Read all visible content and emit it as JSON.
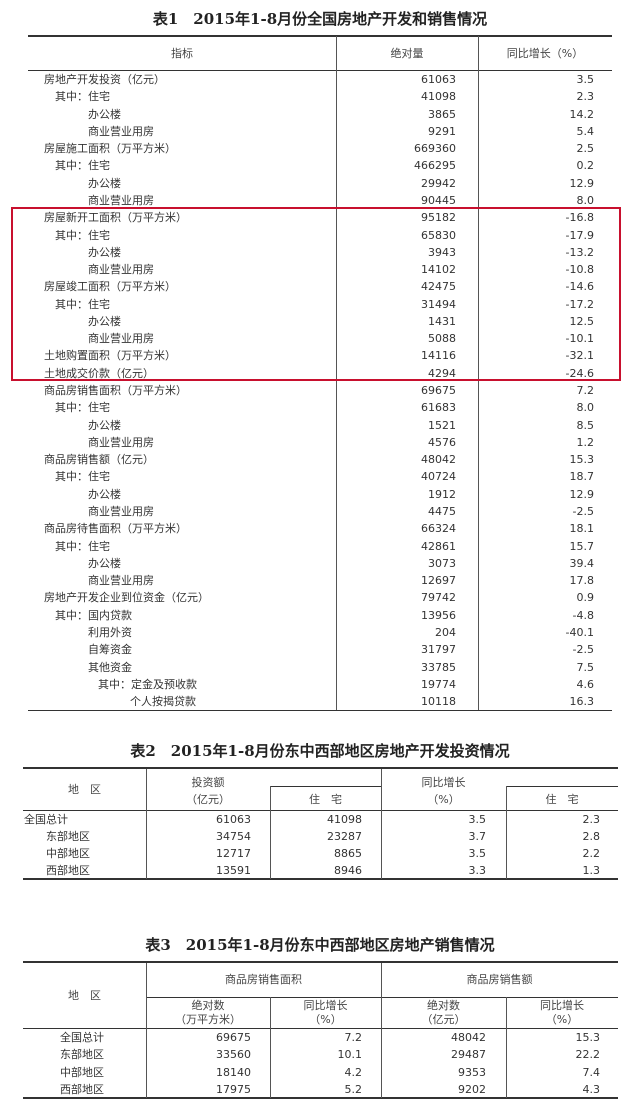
{
  "table1": {
    "title": "表1　2015年1-8月份全国房地产开发和销售情况",
    "headers": [
      "指标",
      "绝对量",
      "同比增长（%）"
    ],
    "highlight_color": "#c8102e",
    "rows": [
      {
        "label": "房地产开发投资（亿元）",
        "indent": 0,
        "value": "61063",
        "growth": "3.5"
      },
      {
        "label": "其中：住宅",
        "indent": 1,
        "value": "41098",
        "growth": "2.3"
      },
      {
        "label": "办公楼",
        "indent": 2,
        "value": "3865",
        "growth": "14.2"
      },
      {
        "label": "商业营业用房",
        "indent": 2,
        "value": "9291",
        "growth": "5.4"
      },
      {
        "label": "房屋施工面积（万平方米）",
        "indent": 0,
        "value": "669360",
        "growth": "2.5"
      },
      {
        "label": "其中：住宅",
        "indent": 1,
        "value": "466295",
        "growth": "0.2"
      },
      {
        "label": "办公楼",
        "indent": 2,
        "value": "29942",
        "growth": "12.9"
      },
      {
        "label": "商业营业用房",
        "indent": 2,
        "value": "90445",
        "growth": "8.0"
      },
      {
        "label": "房屋新开工面积（万平方米）",
        "indent": 0,
        "value": "95182",
        "growth": "-16.8"
      },
      {
        "label": "其中：住宅",
        "indent": 1,
        "value": "65830",
        "growth": "-17.9"
      },
      {
        "label": "办公楼",
        "indent": 2,
        "value": "3943",
        "growth": "-13.2"
      },
      {
        "label": "商业营业用房",
        "indent": 2,
        "value": "14102",
        "growth": "-10.8"
      },
      {
        "label": "房屋竣工面积（万平方米）",
        "indent": 0,
        "value": "42475",
        "growth": "-14.6"
      },
      {
        "label": "其中：住宅",
        "indent": 1,
        "value": "31494",
        "growth": "-17.2"
      },
      {
        "label": "办公楼",
        "indent": 2,
        "value": "1431",
        "growth": "12.5"
      },
      {
        "label": "商业营业用房",
        "indent": 2,
        "value": "5088",
        "growth": "-10.1"
      },
      {
        "label": "土地购置面积（万平方米）",
        "indent": 0,
        "value": "14116",
        "growth": "-32.1"
      },
      {
        "label": "土地成交价款（亿元）",
        "indent": 0,
        "value": "4294",
        "growth": "-24.6"
      },
      {
        "label": "商品房销售面积（万平方米）",
        "indent": 0,
        "value": "69675",
        "growth": "7.2"
      },
      {
        "label": "其中：住宅",
        "indent": 1,
        "value": "61683",
        "growth": "8.0"
      },
      {
        "label": "办公楼",
        "indent": 2,
        "value": "1521",
        "growth": "8.5"
      },
      {
        "label": "商业营业用房",
        "indent": 2,
        "value": "4576",
        "growth": "1.2"
      },
      {
        "label": "商品房销售额（亿元）",
        "indent": 0,
        "value": "48042",
        "growth": "15.3"
      },
      {
        "label": "其中：住宅",
        "indent": 1,
        "value": "40724",
        "growth": "18.7"
      },
      {
        "label": "办公楼",
        "indent": 2,
        "value": "1912",
        "growth": "12.9"
      },
      {
        "label": "商业营业用房",
        "indent": 2,
        "value": "4475",
        "growth": "-2.5"
      },
      {
        "label": "商品房待售面积（万平方米）",
        "indent": 0,
        "value": "66324",
        "growth": "18.1"
      },
      {
        "label": "其中：住宅",
        "indent": 1,
        "value": "42861",
        "growth": "15.7"
      },
      {
        "label": "办公楼",
        "indent": 2,
        "value": "3073",
        "growth": "39.4"
      },
      {
        "label": "商业营业用房",
        "indent": 2,
        "value": "12697",
        "growth": "17.8"
      },
      {
        "label": "房地产开发企业到位资金（亿元）",
        "indent": 0,
        "value": "79742",
        "growth": "0.9"
      },
      {
        "label": "其中：国内贷款",
        "indent": 1,
        "value": "13956",
        "growth": "-4.8"
      },
      {
        "label": "利用外资",
        "indent": 2,
        "value": "204",
        "growth": "-40.1"
      },
      {
        "label": "自筹资金",
        "indent": 2,
        "value": "31797",
        "growth": "-2.5"
      },
      {
        "label": "其他资金",
        "indent": 2,
        "value": "33785",
        "growth": "7.5"
      },
      {
        "label": "其中：定金及预收款",
        "indent": 3,
        "value": "19774",
        "growth": "4.6"
      },
      {
        "label": "个人按揭贷款",
        "indent": 4,
        "value": "10118",
        "growth": "16.3"
      }
    ]
  },
  "table2": {
    "title": "表2　2015年1-8月份东中西部地区房地产开发投资情况",
    "headers": {
      "region": "地　区",
      "invest": "投资额",
      "invest_unit": "（亿元）",
      "residential": "住　宅",
      "growth": "同比增长",
      "growth_unit": "（%）",
      "growth_residential": "住　宅"
    },
    "rows": [
      {
        "region": "全国总计",
        "indent": 0,
        "invest": "61063",
        "residential": "41098",
        "growth": "3.5",
        "growth_residential": "2.3"
      },
      {
        "region": "东部地区",
        "indent": 1,
        "invest": "34754",
        "residential": "23287",
        "growth": "3.7",
        "growth_residential": "2.8"
      },
      {
        "region": "中部地区",
        "indent": 1,
        "invest": "12717",
        "residential": "8865",
        "growth": "3.5",
        "growth_residential": "2.2"
      },
      {
        "region": "西部地区",
        "indent": 1,
        "invest": "13591",
        "residential": "8946",
        "growth": "3.3",
        "growth_residential": "1.3"
      }
    ]
  },
  "table3": {
    "title": "表3　2015年1-8月份东中西部地区房地产销售情况",
    "headers": {
      "region": "地　区",
      "area_group": "商品房销售面积",
      "amount_group": "商品房销售额",
      "area_abs": "绝对数",
      "area_unit": "（万平方米）",
      "area_growth": "同比增长",
      "area_growth_unit": "（%）",
      "amount_abs": "绝对数",
      "amount_unit": "（亿元）",
      "amount_growth": "同比增长",
      "amount_growth_unit": "（%）"
    },
    "rows": [
      {
        "region": "全国总计",
        "area": "69675",
        "area_growth": "7.2",
        "amount": "48042",
        "amount_growth": "15.3"
      },
      {
        "region": "东部地区",
        "area": "33560",
        "area_growth": "10.1",
        "amount": "29487",
        "amount_growth": "22.2"
      },
      {
        "region": "中部地区",
        "area": "18140",
        "area_growth": "4.2",
        "amount": "9353",
        "amount_growth": "7.4"
      },
      {
        "region": "西部地区",
        "area": "17975",
        "area_growth": "5.2",
        "amount": "9202",
        "amount_growth": "4.3"
      }
    ]
  }
}
